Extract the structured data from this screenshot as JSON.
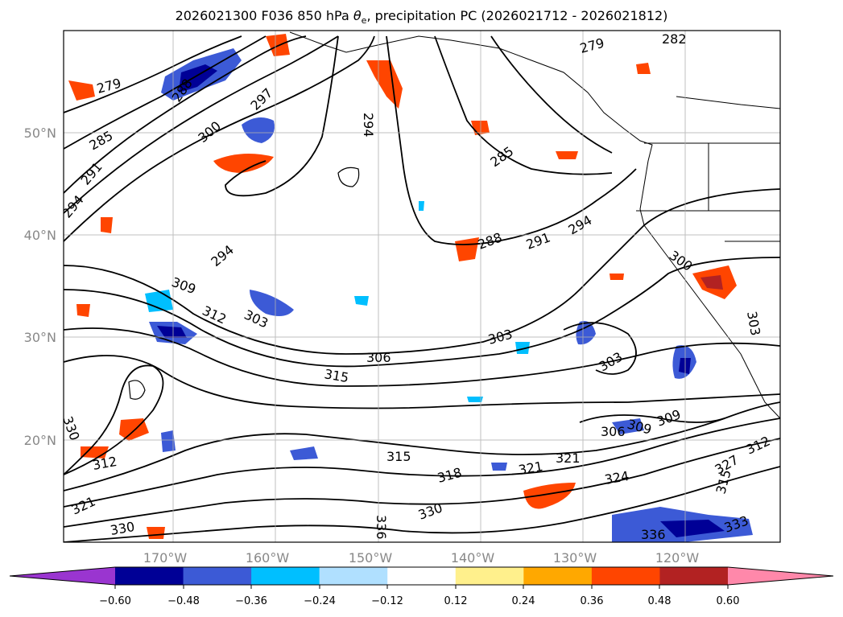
{
  "title": {
    "prefix": "2026021300 F036 850 hPa ",
    "theta": "θ",
    "sub": "e",
    "suffix": ", precipitation PC (2026021712 - 2026021812)"
  },
  "map": {
    "lat_labels": [
      "50°N",
      "40°N",
      "30°N",
      "20°N"
    ],
    "lon_labels": [
      "170°W",
      "160°W",
      "150°W",
      "140°W",
      "130°W",
      "120°W"
    ],
    "contour_labels": [
      "279",
      "282",
      "279",
      "285",
      "288",
      "291",
      "294",
      "297",
      "300",
      "294",
      "294",
      "285",
      "288",
      "291",
      "294",
      "300",
      "309",
      "312",
      "303",
      "303",
      "306",
      "303",
      "303",
      "309",
      "315",
      "306",
      "309",
      "312",
      "315",
      "321",
      "318",
      "321",
      "324",
      "327",
      "321",
      "330",
      "330",
      "336",
      "336",
      "333",
      "330",
      "312",
      "315"
    ]
  },
  "colorbar": {
    "colors": [
      "#9a35d0",
      "#000096",
      "#3c5ad6",
      "#00bfff",
      "#b0e0ff",
      "#ffffff",
      "#fff08c",
      "#ffa800",
      "#ff4500",
      "#b22222",
      "#ff88aa"
    ],
    "ticks": [
      "−0.60",
      "−0.48",
      "−0.36",
      "−0.24",
      "−0.12",
      "0.12",
      "0.24",
      "0.36",
      "0.48",
      "0.60"
    ]
  }
}
